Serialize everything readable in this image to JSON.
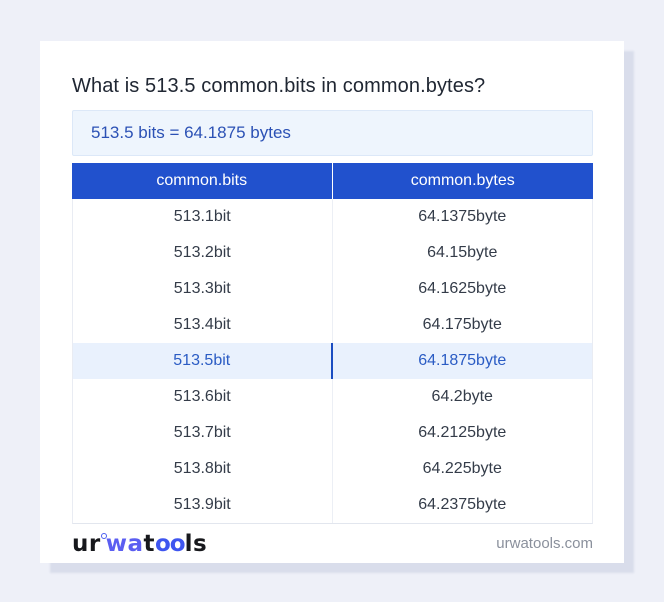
{
  "question": "What is 513.5 common.bits in common.bytes?",
  "result": "513.5 bits = 64.1875 bytes",
  "table": {
    "headers": [
      "common.bits",
      "common.bytes"
    ],
    "rows": [
      {
        "bits": "513.1bit",
        "bytes": "64.1375byte",
        "highlighted": false
      },
      {
        "bits": "513.2bit",
        "bytes": "64.15byte",
        "highlighted": false
      },
      {
        "bits": "513.3bit",
        "bytes": "64.1625byte",
        "highlighted": false
      },
      {
        "bits": "513.4bit",
        "bytes": "64.175byte",
        "highlighted": false
      },
      {
        "bits": "513.5bit",
        "bytes": "64.1875byte",
        "highlighted": true
      },
      {
        "bits": "513.6bit",
        "bytes": "64.2byte",
        "highlighted": false
      },
      {
        "bits": "513.7bit",
        "bytes": "64.2125byte",
        "highlighted": false
      },
      {
        "bits": "513.8bit",
        "bytes": "64.225byte",
        "highlighted": false
      },
      {
        "bits": "513.9bit",
        "bytes": "64.2375byte",
        "highlighted": false
      }
    ]
  },
  "footer": {
    "logo": {
      "part1": "ur",
      "part2": "wa",
      "part3": "t",
      "part4": "oo",
      "part5": "ls"
    },
    "site": "urwatools.com"
  },
  "colors": {
    "page_background": "#eef0f8",
    "header_blue": "#2151cd",
    "result_text_blue": "#2b51b5",
    "result_background": "#eef5fd",
    "highlight_row_background": "#e9f1fd",
    "highlight_text_blue": "#2b5cc4",
    "row_text": "#343c49",
    "logo_blue_wa": "#5b5ef1",
    "logo_blue_oo": "#3e55ef",
    "site_text_gray": "#8a909c"
  }
}
